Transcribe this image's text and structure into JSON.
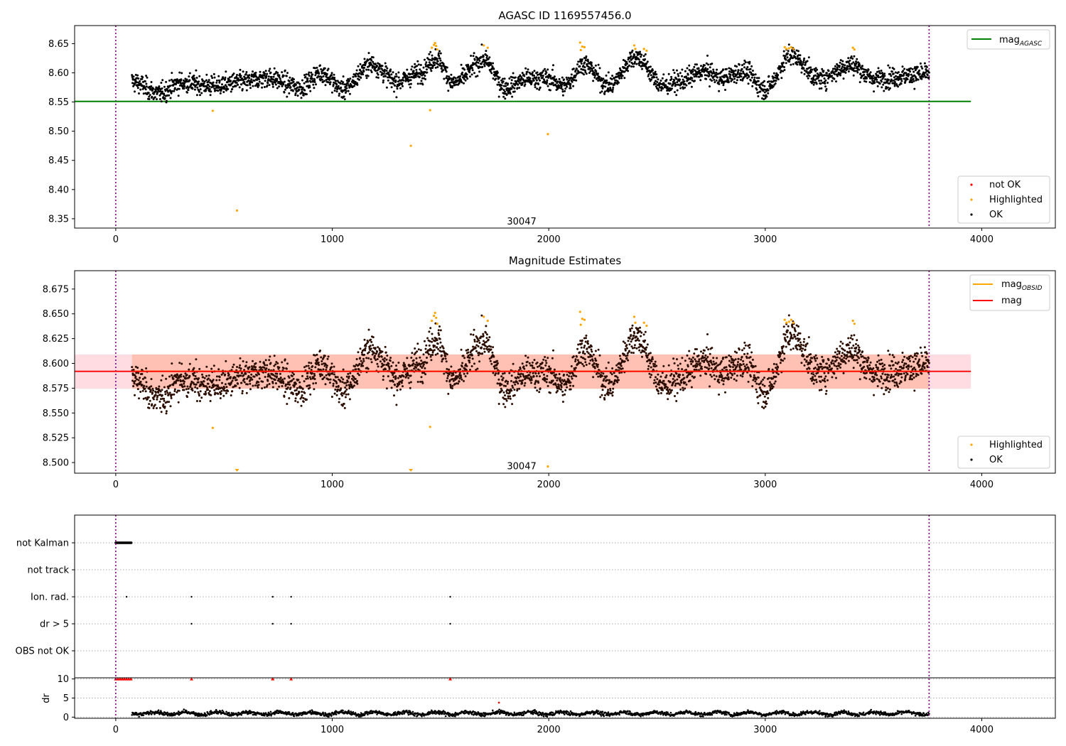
{
  "chart_data": [
    {
      "type": "scatter",
      "title": "AGASC ID 1169557456.0",
      "xlabel": "",
      "ylabel": "",
      "xlim": [
        -190,
        4340
      ],
      "ylim": [
        8.334,
        8.681
      ],
      "xticks": [
        0,
        1000,
        2000,
        3000,
        4000
      ],
      "yticks": [
        8.35,
        8.4,
        8.45,
        8.5,
        8.55,
        8.6,
        8.65
      ],
      "ytick_labels": [
        "8.35",
        "8.40",
        "8.45",
        "8.50",
        "8.55",
        "8.60",
        "8.65"
      ],
      "annotation": {
        "text": "30047",
        "x": 1875,
        "y": 8.345
      },
      "legend_top": [
        {
          "label": "mag",
          "sub": "AGASC",
          "color": "#008000"
        }
      ],
      "legend_bottom": [
        {
          "label": "not OK",
          "color": "#ff0000"
        },
        {
          "label": "Highlighted",
          "color": "#ffa500"
        },
        {
          "label": "OK",
          "color": "#000000"
        }
      ],
      "reference_line": {
        "y": 8.551,
        "x": [
          -190,
          3950
        ],
        "color": "#008000"
      },
      "obs_boundaries": [
        0,
        3757
      ],
      "series": [
        {
          "kind": "OK",
          "points_count": 3000,
          "x_range": [
            75,
            3757
          ],
          "trend_knots": [
            [
              75,
              8.585
            ],
            [
              200,
              8.565
            ],
            [
              300,
              8.583
            ],
            [
              450,
              8.578
            ],
            [
              600,
              8.585
            ],
            [
              700,
              8.592
            ],
            [
              850,
              8.575
            ],
            [
              950,
              8.6
            ],
            [
              1050,
              8.572
            ],
            [
              1180,
              8.615
            ],
            [
              1300,
              8.585
            ],
            [
              1400,
              8.6
            ],
            [
              1480,
              8.625
            ],
            [
              1560,
              8.583
            ],
            [
              1700,
              8.622
            ],
            [
              1800,
              8.575
            ],
            [
              1900,
              8.59
            ],
            [
              2000,
              8.59
            ],
            [
              2070,
              8.577
            ],
            [
              2160,
              8.615
            ],
            [
              2280,
              8.578
            ],
            [
              2400,
              8.628
            ],
            [
              2530,
              8.578
            ],
            [
              2600,
              8.585
            ],
            [
              2720,
              8.603
            ],
            [
              2800,
              8.59
            ],
            [
              2900,
              8.603
            ],
            [
              3000,
              8.572
            ],
            [
              3120,
              8.63
            ],
            [
              3250,
              8.59
            ],
            [
              3400,
              8.614
            ],
            [
              3500,
              8.59
            ],
            [
              3757,
              8.598
            ]
          ]
        },
        {
          "kind": "Highlighted",
          "points": [
            [
              448,
              8.535
            ],
            [
              560,
              8.364
            ],
            [
              1363,
              8.475
            ],
            [
              1452,
              8.536
            ],
            [
              1996,
              8.495
            ],
            [
              1460,
              8.643
            ],
            [
              1470,
              8.648
            ],
            [
              1475,
              8.651
            ],
            [
              1480,
              8.646
            ],
            [
              1485,
              8.64
            ],
            [
              1700,
              8.647
            ],
            [
              1718,
              8.643
            ],
            [
              2145,
              8.652
            ],
            [
              2155,
              8.645
            ],
            [
              2165,
              8.644
            ],
            [
              2148,
              8.639
            ],
            [
              2395,
              8.647
            ],
            [
              2400,
              8.641
            ],
            [
              2440,
              8.641
            ],
            [
              2452,
              8.638
            ],
            [
              3090,
              8.644
            ],
            [
              3098,
              8.641
            ],
            [
              3110,
              8.642
            ],
            [
              3120,
              8.644
            ],
            [
              3130,
              8.641
            ],
            [
              3405,
              8.643
            ],
            [
              3412,
              8.64
            ]
          ]
        }
      ]
    },
    {
      "type": "scatter",
      "title": "Magnitude Estimates",
      "xlabel": "",
      "ylabel": "",
      "xlim": [
        -190,
        4340
      ],
      "ylim": [
        8.4893,
        8.6935
      ],
      "xticks": [
        0,
        1000,
        2000,
        3000,
        4000
      ],
      "yticks": [
        8.5,
        8.525,
        8.55,
        8.575,
        8.6,
        8.625,
        8.65,
        8.675
      ],
      "ytick_labels": [
        "8.500",
        "8.525",
        "8.550",
        "8.575",
        "8.600",
        "8.625",
        "8.650",
        "8.675"
      ],
      "annotation": {
        "text": "30047",
        "x": 1875,
        "y": 8.4962
      },
      "legend_top": [
        {
          "label": "mag",
          "sub": "OBSID",
          "color": "#ffa500"
        },
        {
          "label": "mag",
          "sub": "",
          "color": "#ff0000"
        }
      ],
      "legend_bottom": [
        {
          "label": "Highlighted",
          "color": "#ffa500"
        },
        {
          "label": "OK",
          "color": "#000000"
        }
      ],
      "mag_line": {
        "y": 8.592,
        "x": [
          -190,
          3950
        ],
        "color": "#ff0000"
      },
      "mag_obsid_line": {
        "y": 8.592,
        "x": [
          75,
          3757
        ],
        "color": "#ffa500"
      },
      "band_mag": {
        "y": [
          8.5745,
          8.609
        ],
        "x": [
          -190,
          3950
        ],
        "color": "#ffc0cb"
      },
      "band_obsid": {
        "y": [
          8.5745,
          8.609
        ],
        "x": [
          75,
          3757
        ],
        "color": "#ffa07a"
      },
      "obs_boundaries": [
        0,
        3757
      ],
      "series": [
        {
          "kind": "OK",
          "same_as": "chart_data.0.series.0"
        },
        {
          "kind": "Highlighted",
          "points": [
            [
              448,
              8.535
            ],
            [
              1452,
              8.536
            ],
            [
              1996,
              8.496
            ],
            [
              1460,
              8.643
            ],
            [
              1470,
              8.648
            ],
            [
              1475,
              8.651
            ],
            [
              1480,
              8.646
            ],
            [
              1485,
              8.64
            ],
            [
              1700,
              8.647
            ],
            [
              1718,
              8.643
            ],
            [
              2145,
              8.652
            ],
            [
              2155,
              8.645
            ],
            [
              2165,
              8.644
            ],
            [
              2148,
              8.639
            ],
            [
              2395,
              8.647
            ],
            [
              2400,
              8.641
            ],
            [
              2440,
              8.641
            ],
            [
              2452,
              8.638
            ],
            [
              3090,
              8.644
            ],
            [
              3098,
              8.641
            ],
            [
              3110,
              8.642
            ],
            [
              3120,
              8.644
            ],
            [
              3130,
              8.641
            ],
            [
              3405,
              8.643
            ],
            [
              3412,
              8.64
            ]
          ],
          "below_range_markers": [
            560,
            1363
          ]
        }
      ]
    },
    {
      "type": "scatter",
      "title": "",
      "xlim": [
        -190,
        4340
      ],
      "xticks": [
        0,
        1000,
        2000,
        3000,
        4000
      ],
      "flag_categories": [
        "not Kalman",
        "not track",
        "Ion. rad.",
        "dr > 5",
        "OBS not OK"
      ],
      "flags": {
        "not Kalman": {
          "x_range": [
            0,
            72
          ]
        },
        "not track": {
          "x": []
        },
        "Ion. rad.": {
          "x": [
            50,
            350,
            725,
            810,
            1545
          ]
        },
        "dr > 5": {
          "x": [
            350,
            725,
            810,
            1545
          ]
        },
        "OBS not OK": {
          "x": []
        }
      },
      "dr_panel": {
        "ylabel": "dr",
        "ylim": [
          -0.3,
          10.3
        ],
        "yticks": [
          0,
          5,
          10
        ],
        "clipped_markers_x": [
          0,
          10,
          20,
          30,
          40,
          50,
          60,
          70,
          350,
          725,
          810,
          1545
        ],
        "clipped_value": 10,
        "red_point": [
          1770,
          3.8
        ],
        "ok_level": 1.0
      },
      "obs_boundaries": [
        0,
        3757
      ]
    }
  ],
  "x_tick_labels": [
    "0",
    "1000",
    "2000",
    "3000",
    "4000"
  ]
}
